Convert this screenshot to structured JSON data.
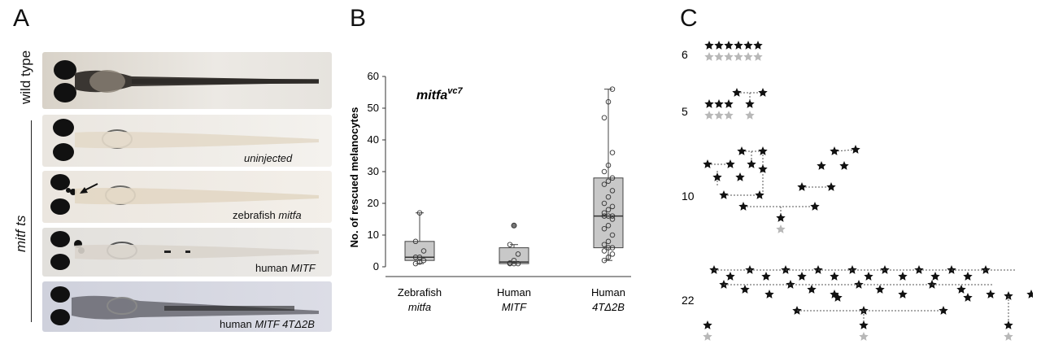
{
  "figure": {
    "panel_a_letter": "A",
    "panel_b_letter": "B",
    "panel_c_letter": "C"
  },
  "panel_a": {
    "group_label_wild": "wild type",
    "group_label_mutant": "mitf ts",
    "photos": [
      {
        "caption_plain": "",
        "caption_italic": ""
      },
      {
        "caption_plain": "",
        "caption_italic": "uninjected"
      },
      {
        "caption_plain": "zebrafish ",
        "caption_italic": "mitfa"
      },
      {
        "caption_plain": "human ",
        "caption_italic": "MITF"
      },
      {
        "caption_plain": "human ",
        "caption_italic": "MITF 4TΔ2B"
      }
    ]
  },
  "chart_data": {
    "type": "box",
    "annotation": "mitfa",
    "annotation_sup": "vc7",
    "ylabel": "No. of rescued melanocytes",
    "ylim": [
      0,
      60
    ],
    "yticks": [
      "0",
      "10",
      "20",
      "30",
      "40",
      "50",
      "60"
    ],
    "categories": [
      {
        "line1": "Zebrafish",
        "line2": "mitfa"
      },
      {
        "line1": "Human",
        "line2": "MITF"
      },
      {
        "line1": "Human",
        "line2": "4TΔ2B"
      }
    ],
    "boxes": [
      {
        "min": 1,
        "q1": 2,
        "median": 3,
        "q3": 8,
        "max": 17,
        "points": [
          1,
          1.5,
          2,
          3,
          3,
          5,
          8,
          17
        ],
        "outliers": []
      },
      {
        "min": 1,
        "q1": 1,
        "median": 1.5,
        "q3": 6,
        "max": 7,
        "points": [
          1,
          1,
          1,
          1.2,
          2,
          4,
          7
        ],
        "outliers": [
          13
        ]
      },
      {
        "min": 2,
        "q1": 6,
        "median": 16,
        "q3": 28,
        "max": 56,
        "points": [
          2,
          3,
          4,
          5,
          6,
          6,
          7,
          8,
          10,
          12,
          13,
          15,
          16,
          16,
          16,
          17,
          18,
          19,
          20,
          22,
          24,
          26,
          27,
          28,
          30,
          32,
          36,
          47,
          52,
          56
        ]
      }
    ]
  },
  "panel_c": {
    "rows": [
      {
        "label": "6"
      },
      {
        "label": "5"
      },
      {
        "label": "10"
      },
      {
        "label": "22"
      }
    ],
    "colors": {
      "black_star": "#111111",
      "grey_star": "#b8b8b8"
    }
  }
}
